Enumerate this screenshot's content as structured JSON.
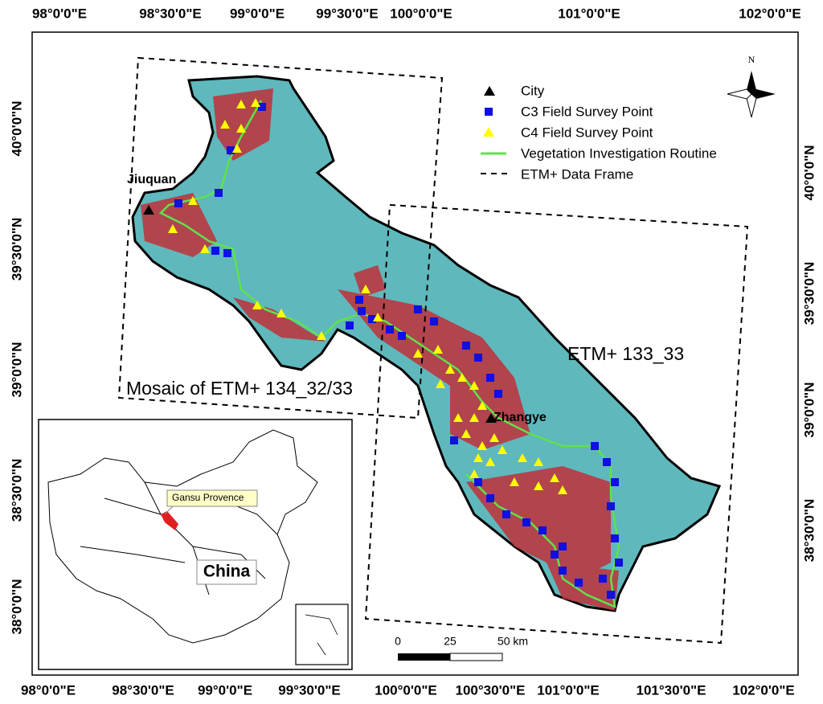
{
  "map": {
    "top_labels": [
      "98°0'0\"E",
      "98°30'0\"E",
      "99°0'0\"E",
      "99°30'0\"E",
      "100°0'0\"E",
      "101°0'0\"E",
      "102°0'0\"E"
    ],
    "bottom_labels": [
      "98°0'0\"E",
      "98°30'0\"E",
      "99°0'0\"E",
      "99°30'0\"E",
      "100°0'0\"E",
      "100°30'0\"E",
      "101°0'0\"E",
      "101°30'0\"E",
      "102°0'0\"E"
    ],
    "left_labels": [
      "40°0'0\"N",
      "39°30'0\"N",
      "39°0'0\"N",
      "38°30'0\"N",
      "38°0'0\"N"
    ],
    "right_labels": [
      "40°0'0\"N",
      "39°30'0\"N",
      "39°0'0\"N",
      "38°30'0\"N"
    ],
    "legend": [
      "City",
      "C3 Field Survey Point",
      "C4 Field Survey Point",
      "Vegetation Investigation Routine",
      "ETM+ Data Frame"
    ],
    "cities": [
      "Jiuquan",
      "Zhangye"
    ],
    "frames": [
      "Mosaic of ETM+  134_32/33",
      "ETM+ 133_33"
    ],
    "north": "N",
    "scale": [
      "0",
      "25",
      "50 km"
    ],
    "inset": {
      "callout": "Gansu Provence",
      "country": "China"
    }
  }
}
